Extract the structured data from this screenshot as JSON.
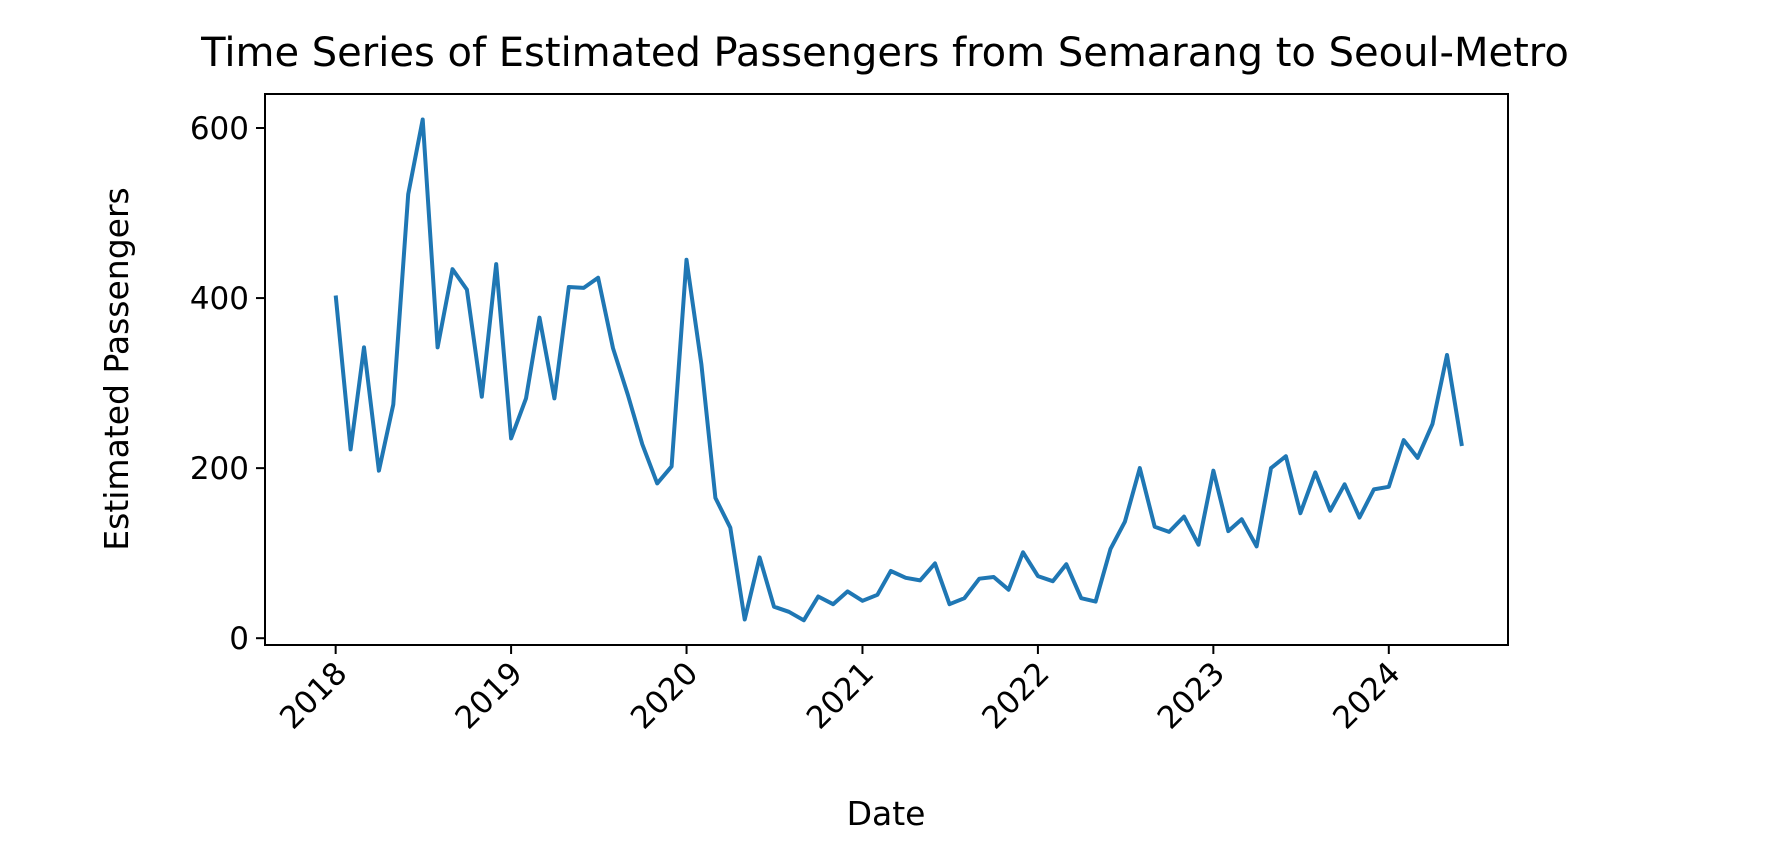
{
  "chart_data": {
    "type": "line",
    "title": "Time Series of Estimated Passengers from Semarang to Seoul-Metro",
    "xlabel": "Date",
    "ylabel": "Estimated Passengers",
    "xlim": [
      "2017-08-07",
      "2024-09-05"
    ],
    "ylim": [
      -8,
      640
    ],
    "x_ticks": [
      "2018",
      "2019",
      "2020",
      "2021",
      "2022",
      "2023",
      "2024"
    ],
    "y_ticks": [
      0,
      200,
      400,
      600
    ],
    "grid": false,
    "legend": "none",
    "color": "#1f77b4",
    "series": [
      {
        "x": [
          "2018-01",
          "2018-02",
          "2018-03",
          "2018-04",
          "2018-05",
          "2018-06",
          "2018-07",
          "2018-08",
          "2018-09",
          "2018-10",
          "2018-11",
          "2018-12",
          "2019-01",
          "2019-02",
          "2019-03",
          "2019-04",
          "2019-05",
          "2019-06",
          "2019-07",
          "2019-08",
          "2019-09",
          "2019-10",
          "2019-11",
          "2019-12",
          "2020-01",
          "2020-02",
          "2020-03",
          "2020-04",
          "2020-05",
          "2020-06",
          "2020-07",
          "2020-08",
          "2020-09",
          "2020-10",
          "2020-11",
          "2020-12",
          "2021-01",
          "2021-02",
          "2021-03",
          "2021-04",
          "2021-05",
          "2021-06",
          "2021-07",
          "2021-08",
          "2021-09",
          "2021-10",
          "2021-11",
          "2021-12",
          "2022-01",
          "2022-02",
          "2022-03",
          "2022-04",
          "2022-05",
          "2022-06",
          "2022-07",
          "2022-08",
          "2022-09",
          "2022-10",
          "2022-11",
          "2022-12",
          "2023-01",
          "2023-02",
          "2023-03",
          "2023-04",
          "2023-05",
          "2023-06",
          "2023-07",
          "2023-08",
          "2023-09",
          "2023-10",
          "2023-11",
          "2023-12",
          "2024-01",
          "2024-02",
          "2024-03",
          "2024-04",
          "2024-05",
          "2024-06"
        ],
        "y": [
          403,
          222,
          342,
          197,
          275,
          522,
          610,
          342,
          434,
          410,
          284,
          440,
          235,
          282,
          377,
          282,
          413,
          412,
          424,
          341,
          286,
          228,
          182,
          202,
          445,
          322,
          165,
          130,
          22,
          95,
          37,
          31,
          21,
          49,
          40,
          55,
          44,
          51,
          79,
          71,
          68,
          88,
          40,
          47,
          70,
          72,
          57,
          101,
          73,
          67,
          87,
          47,
          43,
          105,
          137,
          200,
          131,
          125,
          143,
          110,
          197,
          126,
          140,
          108,
          200,
          214,
          147,
          195,
          150,
          181,
          142,
          175,
          178,
          233,
          212,
          252,
          333,
          226
        ]
      }
    ]
  }
}
